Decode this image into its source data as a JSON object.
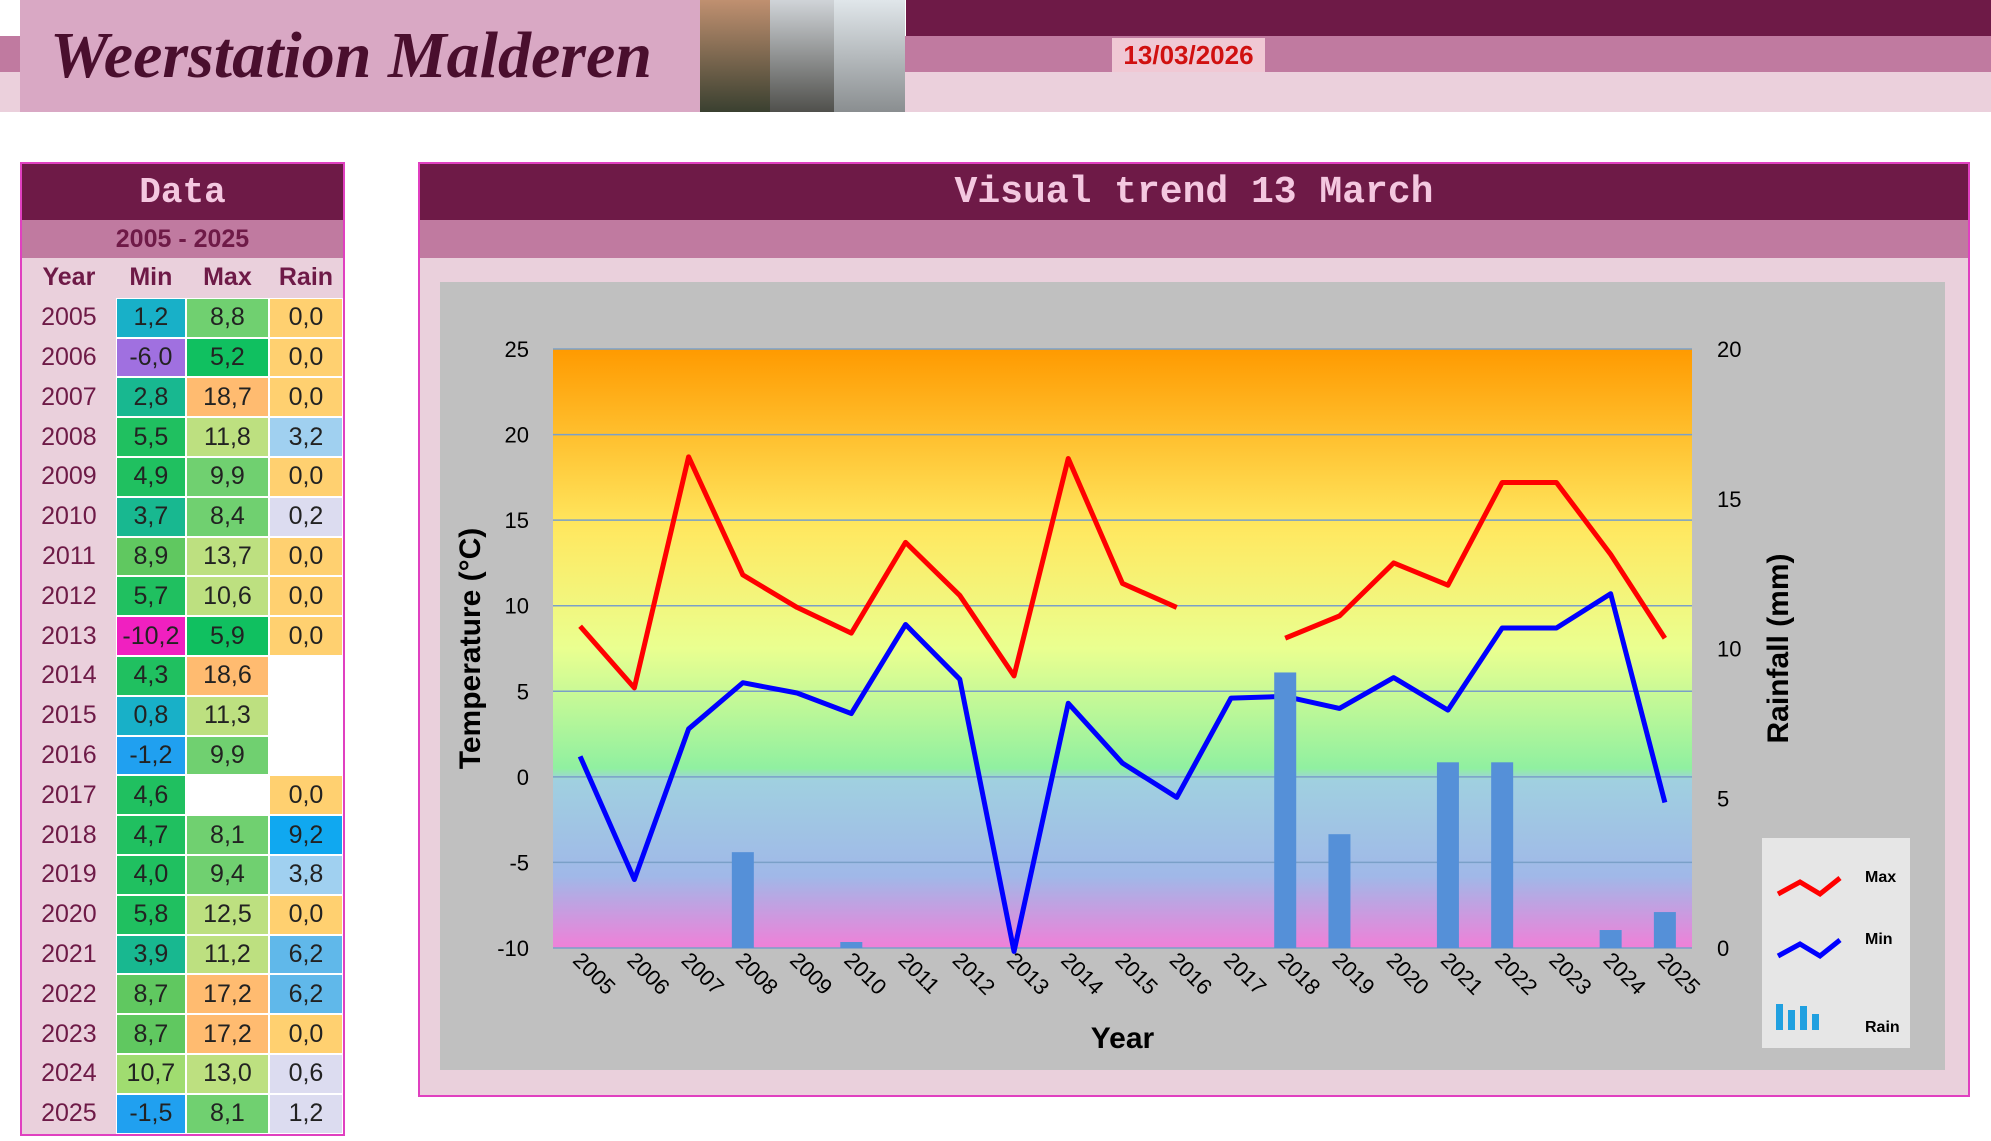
{
  "header": {
    "title": "Weerstation Malderen",
    "date": "13/03/2026"
  },
  "table": {
    "title": "Data",
    "range": "2005 - 2025",
    "columns": [
      "Year",
      "Min",
      "Max",
      "Rain"
    ],
    "rows": [
      [
        "2005",
        "1,2",
        "8,8",
        "0,0"
      ],
      [
        "2006",
        "-6,0",
        "5,2",
        "0,0"
      ],
      [
        "2007",
        "2,8",
        "18,7",
        "0,0"
      ],
      [
        "2008",
        "5,5",
        "11,8",
        "3,2"
      ],
      [
        "2009",
        "4,9",
        "9,9",
        "0,0"
      ],
      [
        "2010",
        "3,7",
        "8,4",
        "0,2"
      ],
      [
        "2011",
        "8,9",
        "13,7",
        "0,0"
      ],
      [
        "2012",
        "5,7",
        "10,6",
        "0,0"
      ],
      [
        "2013",
        "-10,2",
        "5,9",
        "0,0"
      ],
      [
        "2014",
        "4,3",
        "18,6",
        null
      ],
      [
        "2015",
        "0,8",
        "11,3",
        null
      ],
      [
        "2016",
        "-1,2",
        "9,9",
        null
      ],
      [
        "2017",
        "4,6",
        null,
        "0,0"
      ],
      [
        "2018",
        "4,7",
        "8,1",
        "9,2"
      ],
      [
        "2019",
        "4,0",
        "9,4",
        "3,8"
      ],
      [
        "2020",
        "5,8",
        "12,5",
        "0,0"
      ],
      [
        "2021",
        "3,9",
        "11,2",
        "6,2"
      ],
      [
        "2022",
        "8,7",
        "17,2",
        "6,2"
      ],
      [
        "2023",
        "8,7",
        "17,2",
        "0,0"
      ],
      [
        "2024",
        "10,7",
        "13,0",
        "0,6"
      ],
      [
        "2025",
        "-1,5",
        "8,1",
        "1,2"
      ]
    ]
  },
  "chart_data": {
    "type": "line",
    "title": "Visual trend 13 March",
    "x_label": "Year",
    "y_label": "Temperature (°C)",
    "y2_label": "Rainfall (mm)",
    "categories": [
      "2005",
      "2006",
      "2007",
      "2008",
      "2009",
      "2010",
      "2011",
      "2012",
      "2013",
      "2014",
      "2015",
      "2016",
      "2017",
      "2018",
      "2019",
      "2020",
      "2021",
      "2022",
      "2023",
      "2024",
      "2025"
    ],
    "series": [
      {
        "name": "Max",
        "type": "line",
        "color": "#ff0000",
        "values": [
          8.8,
          5.2,
          18.7,
          11.8,
          9.9,
          8.4,
          13.7,
          10.6,
          5.9,
          18.6,
          11.3,
          9.9,
          null,
          8.1,
          9.4,
          12.5,
          11.2,
          17.2,
          17.2,
          13.0,
          8.1
        ]
      },
      {
        "name": "Min",
        "type": "line",
        "color": "#0000ff",
        "values": [
          1.2,
          -6.0,
          2.8,
          5.5,
          4.9,
          3.7,
          8.9,
          5.7,
          -10.2,
          4.3,
          0.8,
          -1.2,
          4.6,
          4.7,
          4.0,
          5.8,
          3.9,
          8.7,
          8.7,
          10.7,
          -1.5
        ]
      },
      {
        "name": "Rain",
        "type": "bar",
        "axis": "y2",
        "color": "#5590d8",
        "values": [
          0,
          0,
          0,
          3.2,
          0,
          0.2,
          0,
          0,
          0,
          null,
          null,
          null,
          0,
          9.2,
          3.8,
          0,
          6.2,
          6.2,
          0,
          0.6,
          1.2
        ]
      }
    ],
    "ylim": [
      -10,
      25
    ],
    "yticks": [
      -10,
      -5,
      0,
      5,
      10,
      15,
      20,
      25
    ],
    "y2lim": [
      0,
      20
    ],
    "y2ticks": [
      0,
      5,
      10,
      15,
      20
    ],
    "grid": true,
    "legend": "right"
  }
}
